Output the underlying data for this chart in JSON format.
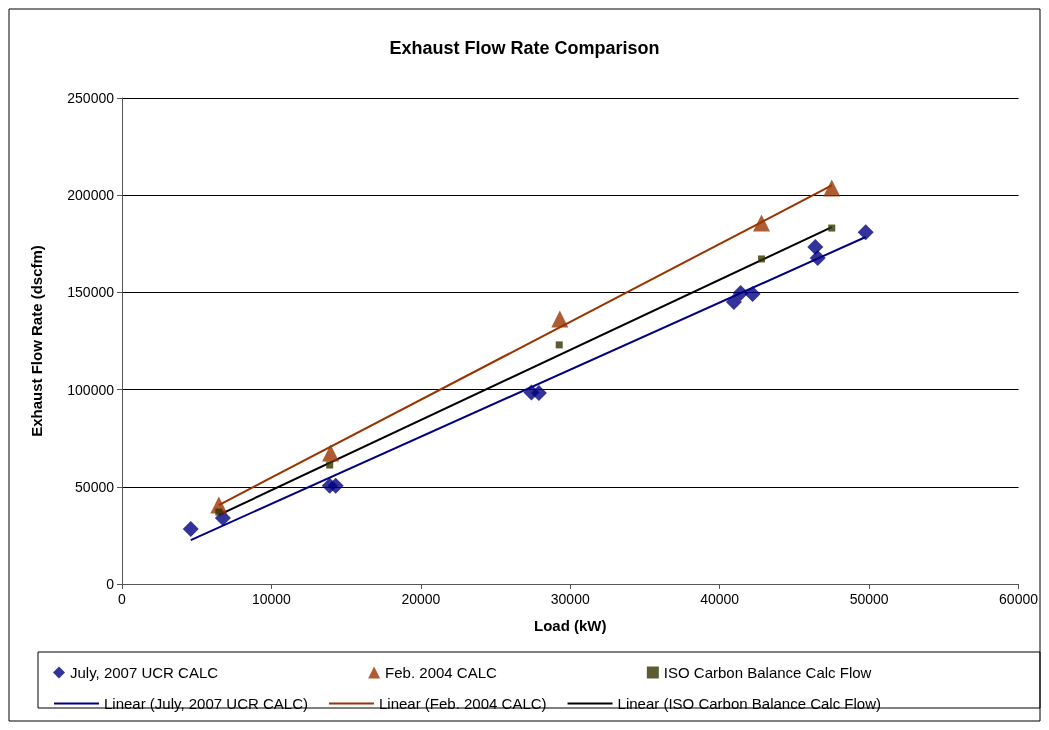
{
  "chart_data": {
    "type": "scatter",
    "title": "Exhaust Flow Rate Comparison",
    "xlabel": "Load (kW)",
    "ylabel": "Exhaust Flow Rate (dscfm)",
    "xlim": [
      0,
      60000
    ],
    "xticks": [
      0,
      10000,
      20000,
      30000,
      40000,
      50000,
      60000
    ],
    "ylim": [
      0,
      250000
    ],
    "yticks": [
      0,
      50000,
      100000,
      150000,
      200000,
      250000
    ],
    "grid": "y",
    "legend": "bottom",
    "series": [
      {
        "name": "July, 2007 UCR CALC",
        "marker": "diamond",
        "color": "#000080",
        "x": [
          4600,
          6750,
          13900,
          14300,
          27400,
          27900,
          40950,
          41400,
          42200,
          46400,
          46560,
          49770
        ],
        "values": [
          28300,
          34000,
          50500,
          50500,
          98500,
          98200,
          145000,
          149700,
          149200,
          173400,
          167700,
          181000
        ]
      },
      {
        "name": "Feb. 2004 CALC",
        "marker": "triangle",
        "color": "#993300",
        "x": [
          6480,
          13960,
          29300,
          42800,
          47500
        ],
        "values": [
          40600,
          67400,
          136300,
          185700,
          203700
        ]
      },
      {
        "name": "ISO Carbon Balance Calc Flow",
        "marker": "square",
        "color": "#333300",
        "x": [
          6480,
          13900,
          29260,
          42800,
          47500
        ],
        "values": [
          37000,
          61200,
          123000,
          167200,
          183100
        ]
      },
      {
        "name": "Linear (July, 2007 UCR CALC)",
        "type": "line",
        "marker": "none",
        "color": "#000080",
        "x": [
          4600,
          49770
        ],
        "values": [
          22600,
          178500
        ]
      },
      {
        "name": "Linear (Feb. 2004 CALC)",
        "type": "line",
        "marker": "none",
        "color": "#993300",
        "x": [
          6480,
          47500
        ],
        "values": [
          40600,
          205000
        ]
      },
      {
        "name": "Linear (ISO Carbon Balance Calc Flow)",
        "type": "line",
        "marker": "none",
        "color": "#000000",
        "x": [
          6480,
          47500
        ],
        "values": [
          35500,
          183600
        ]
      }
    ]
  }
}
